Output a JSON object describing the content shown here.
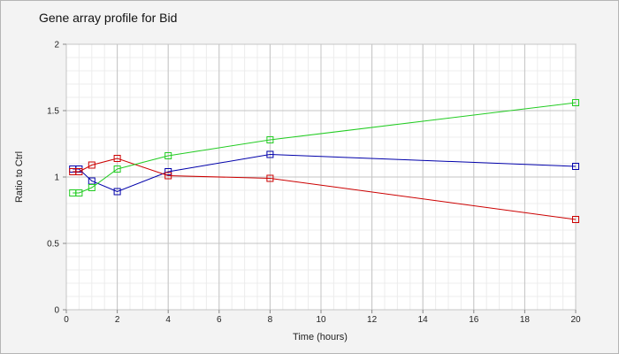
{
  "chart_data": {
    "type": "line",
    "title": "Gene array profile for Bid",
    "xlabel": "Time (hours)",
    "ylabel": "Ratio to Ctrl",
    "xlim": [
      0,
      20
    ],
    "ylim": [
      0,
      2
    ],
    "x_ticks": [
      "0",
      "2",
      "4",
      "6",
      "8",
      "10",
      "12",
      "14",
      "16",
      "18",
      "20"
    ],
    "y_ticks": [
      "0",
      "0.5",
      "1",
      "1.5",
      "2"
    ],
    "grid": true,
    "legend": "none",
    "series": [
      {
        "color": "#0000aa",
        "x": [
          0.25,
          0.5,
          1,
          2,
          4,
          8,
          20
        ],
        "y": [
          1.06,
          1.06,
          0.97,
          0.89,
          1.04,
          1.17,
          1.08
        ]
      },
      {
        "color": "#cc0000",
        "x": [
          0.25,
          0.5,
          1,
          2,
          4,
          8,
          20
        ],
        "y": [
          1.04,
          1.04,
          1.09,
          1.14,
          1.01,
          0.99,
          0.68
        ]
      },
      {
        "color": "#22cc22",
        "x": [
          0.25,
          0.5,
          1,
          2,
          4,
          8,
          20
        ],
        "y": [
          0.88,
          0.88,
          0.92,
          1.06,
          1.16,
          1.28,
          1.56
        ]
      }
    ]
  }
}
